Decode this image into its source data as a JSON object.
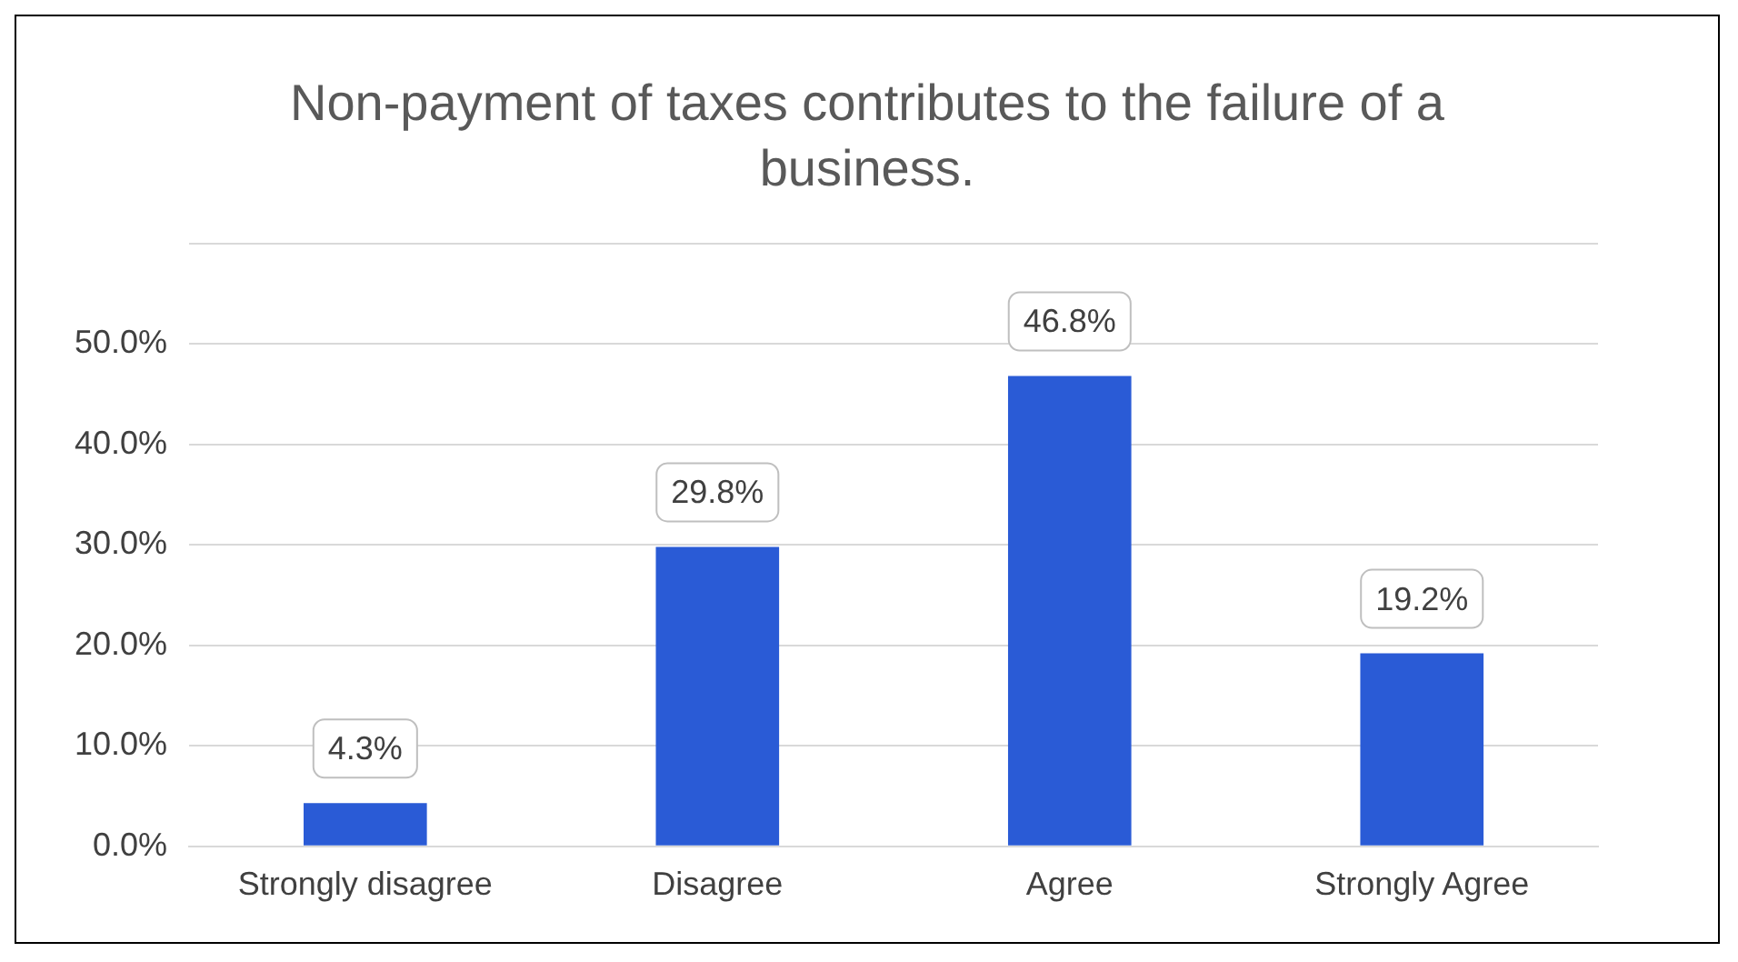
{
  "chart_data": {
    "type": "bar",
    "title": "Non-payment of taxes contributes to the failure of a business.",
    "categories": [
      "Strongly disagree",
      "Disagree",
      "Agree",
      "Strongly Agree"
    ],
    "values": [
      4.3,
      29.8,
      46.8,
      19.2
    ],
    "color": "#2a5bd6",
    "ylim": [
      0,
      60
    ],
    "yticks": [
      {
        "value": 0,
        "label": "0.0%"
      },
      {
        "value": 10,
        "label": "10.0%"
      },
      {
        "value": 20,
        "label": "20.0%"
      },
      {
        "value": 30,
        "label": "30.0%"
      },
      {
        "value": 40,
        "label": "40.0%"
      },
      {
        "value": 50,
        "label": "50.0%"
      },
      {
        "value": 60,
        "label": null
      }
    ],
    "value_labels": [
      "4.3%",
      "29.8%",
      "46.8%",
      "19.2%"
    ],
    "grid": "y",
    "legend": false
  }
}
